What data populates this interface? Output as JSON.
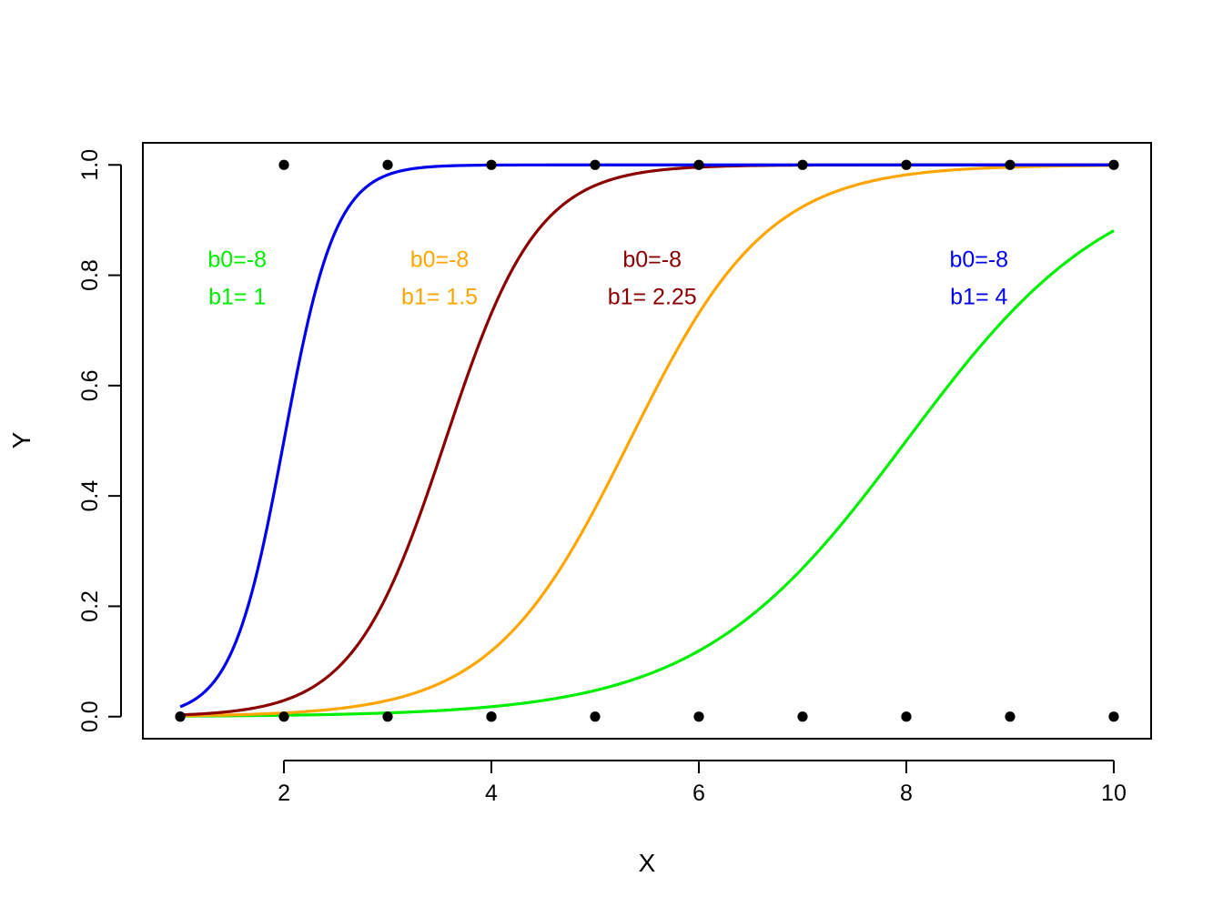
{
  "chart_data": {
    "type": "scatter",
    "title": "",
    "xlabel": "X",
    "ylabel": "Y",
    "xlim": [
      0.64,
      10.36
    ],
    "ylim": [
      -0.04,
      1.04
    ],
    "x_ticks": [
      2,
      4,
      6,
      8,
      10
    ],
    "x_tick_labels": [
      "2",
      "4",
      "6",
      "8",
      "10"
    ],
    "y_ticks": [
      0,
      0.2,
      0.4,
      0.6,
      0.8,
      1
    ],
    "y_tick_labels": [
      "0.0",
      "0.2",
      "0.4",
      "0.6",
      "0.8",
      "1.0"
    ],
    "grid": false,
    "legend": "none",
    "points": {
      "color": "#000000",
      "values": [
        {
          "x": 1,
          "y": 0
        },
        {
          "x": 2,
          "y": 0
        },
        {
          "x": 3,
          "y": 0
        },
        {
          "x": 4,
          "y": 0
        },
        {
          "x": 5,
          "y": 0
        },
        {
          "x": 6,
          "y": 0
        },
        {
          "x": 7,
          "y": 0
        },
        {
          "x": 8,
          "y": 0
        },
        {
          "x": 9,
          "y": 0
        },
        {
          "x": 10,
          "y": 0
        },
        {
          "x": 1,
          "y": 0
        },
        {
          "x": 2,
          "y": 1
        },
        {
          "x": 3,
          "y": 1
        },
        {
          "x": 4,
          "y": 0
        },
        {
          "x": 4,
          "y": 1
        },
        {
          "x": 5,
          "y": 1
        },
        {
          "x": 6,
          "y": 1
        },
        {
          "x": 7,
          "y": 1
        },
        {
          "x": 8,
          "y": 1
        },
        {
          "x": 9,
          "y": 1
        },
        {
          "x": 10,
          "y": 1
        }
      ]
    },
    "curves": [
      {
        "b0": -8,
        "b1": 1,
        "color": "#00ee00",
        "x_range": [
          1,
          10
        ],
        "label_line1": "b0=-8",
        "label_line2": "b1= 1",
        "label_x": 1.55,
        "label_y": 0.8
      },
      {
        "b0": -8,
        "b1": 1.5,
        "color": "#ffa500",
        "x_range": [
          1,
          10
        ],
        "label_line1": "b0=-8",
        "label_line2": "b1= 1.5",
        "label_x": 3.5,
        "label_y": 0.8
      },
      {
        "b0": -8,
        "b1": 2.25,
        "color": "#8b0000",
        "x_range": [
          1,
          10
        ],
        "label_line1": "b0=-8",
        "label_line2": "b1= 2.25",
        "label_x": 5.55,
        "label_y": 0.8
      },
      {
        "b0": -8,
        "b1": 4,
        "color": "#0000ee",
        "x_range": [
          1,
          10
        ],
        "label_line1": "b0=-8",
        "label_line2": "b1= 4",
        "label_x": 8.7,
        "label_y": 0.8
      }
    ]
  }
}
